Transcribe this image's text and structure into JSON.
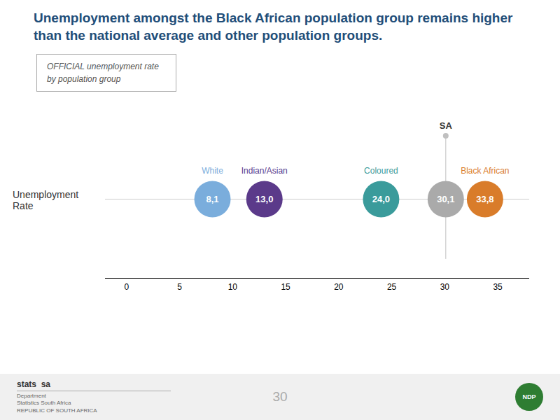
{
  "chart_data": {
    "type": "dot",
    "title": "Unemployment amongst the Black African population group remains higher than the national average and other population groups.",
    "subtitle": "OFFICIAL unemployment rate by population group",
    "ylabel": "Unemployment Rate",
    "categories": [
      "White",
      "Indian/Asian",
      "Coloured",
      "SA",
      "Black African"
    ],
    "values": [
      8.1,
      13.0,
      24.0,
      30.1,
      33.8
    ],
    "value_labels": [
      "8,1",
      "13,0",
      "24,0",
      "30,1",
      "33,8"
    ],
    "colors": [
      "#7AADDC",
      "#5B3A8A",
      "#3A9B9B",
      "#AAAAAA",
      "#D97C2A"
    ],
    "marker": [
      "circle",
      "circle",
      "circle",
      "pin",
      "circle"
    ],
    "data_labels": true,
    "xlim": [
      -2,
      38
    ],
    "xticks": [
      0,
      5,
      10,
      15,
      20,
      25,
      30,
      35
    ],
    "grid": false,
    "tick_labels": "x",
    "annotations": [
      "stats  sa",
      "Department",
      "Statistics South Africa",
      "REPUBLIC OF SOUTH AFRICA",
      "30",
      "NDP"
    ]
  }
}
